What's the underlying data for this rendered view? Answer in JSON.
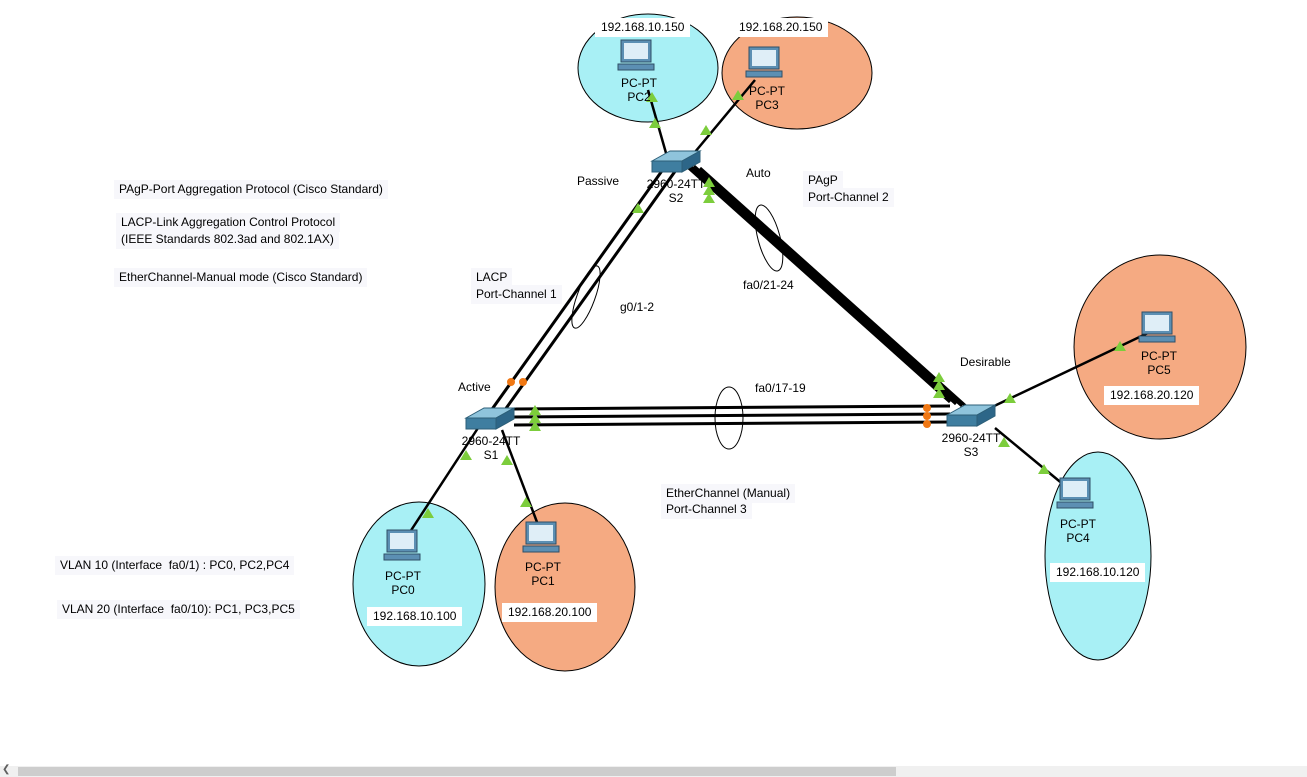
{
  "colors": {
    "vlan10": "#a8f0f5",
    "vlan20": "#f5aa82",
    "link": "#000000",
    "port_up": "#7ccd3c",
    "port_blocked": "#f07814",
    "switch": "#4a8fb0",
    "pc": "#5c8fb3"
  },
  "protocols": {
    "pagp": "PAgP-Port Aggregation Protocol (Cisco Standard)",
    "lacp_line1": "LACP-Link Aggregation Control Protocol",
    "lacp_line2": "(IEEE Standards 802.3ad and 802.1AX)",
    "manual": "EtherChannel-Manual mode (Cisco Standard)"
  },
  "vlans": {
    "vlan10": "VLAN 10 (Interface  fa0/1) : PC0, PC2,PC4",
    "vlan20": "VLAN 20 (Interface  fa0/10): PC1, PC3,PC5"
  },
  "switches": {
    "s1": {
      "model": "2960-24TT",
      "name": "S1"
    },
    "s2": {
      "model": "2960-24TT",
      "name": "S2"
    },
    "s3": {
      "model": "2960-24TT",
      "name": "S3"
    }
  },
  "pcs": {
    "pc0": {
      "type": "PC-PT",
      "name": "PC0",
      "ip": "192.168.10.100"
    },
    "pc1": {
      "type": "PC-PT",
      "name": "PC1",
      "ip": "192.168.20.100"
    },
    "pc2": {
      "type": "PC-PT",
      "name": "PC2",
      "ip": "192.168.10.150"
    },
    "pc3": {
      "type": "PC-PT",
      "name": "PC3",
      "ip": "192.168.20.150"
    },
    "pc4": {
      "type": "PC-PT",
      "name": "PC4",
      "ip": "192.168.10.120"
    },
    "pc5": {
      "type": "PC-PT",
      "name": "PC5",
      "ip": "192.168.20.120"
    }
  },
  "modes": {
    "passive": "Passive",
    "auto": "Auto",
    "active": "Active",
    "desirable": "Desirable"
  },
  "channels": {
    "lacp_line1": "LACP",
    "lacp_line2": "Port-Channel 1",
    "pagp_line1": "PAgP",
    "pagp_line2": "Port-Channel 2",
    "manual_line1": "EtherChannel (Manual)",
    "manual_line2": "Port-Channel 3"
  },
  "interfaces": {
    "s1_s2": "g0/1-2",
    "s2_s3": "fa0/21-24",
    "s1_s3": "fa0/17-19"
  }
}
